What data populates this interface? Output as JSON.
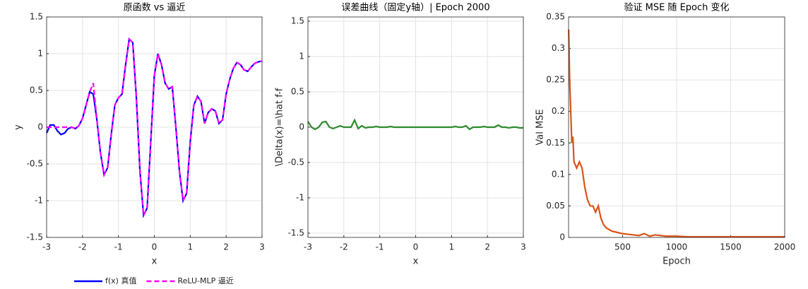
{
  "chart_data": [
    {
      "type": "line",
      "title": "原函数 vs 逼近",
      "xlabel": "x",
      "ylabel": "y",
      "x": [
        -3,
        -2.9,
        -2.8,
        -2.7,
        -2.6,
        -2.5,
        -2.4,
        -2.3,
        -2.2,
        -2.1,
        -2,
        -1.9,
        -1.8,
        -1.7,
        -1.6,
        -1.5,
        -1.4,
        -1.3,
        -1.2,
        -1.1,
        -1,
        -0.9,
        -0.8,
        -0.7,
        -0.6,
        -0.5,
        -0.4,
        -0.3,
        -0.2,
        -0.1,
        0,
        0.1,
        0.2,
        0.3,
        0.4,
        0.5,
        0.6,
        0.7,
        0.8,
        0.9,
        1,
        1.1,
        1.2,
        1.3,
        1.4,
        1.5,
        1.6,
        1.7,
        1.8,
        1.9,
        2,
        2.1,
        2.2,
        2.3,
        2.4,
        2.5,
        2.6,
        2.7,
        2.8,
        2.9,
        3
      ],
      "series": [
        {
          "name": "f(x) 真值",
          "color": "#0000ff",
          "linestyle": "solid",
          "values": [
            -0.08,
            0.03,
            0.03,
            -0.05,
            -0.1,
            -0.08,
            -0.02,
            0,
            -0.02,
            0.02,
            0.12,
            0.3,
            0.48,
            0.45,
            0.1,
            -0.35,
            -0.65,
            -0.55,
            -0.1,
            0.3,
            0.4,
            0.45,
            0.85,
            1.2,
            1.15,
            0.4,
            -0.6,
            -1.2,
            -1.1,
            -0.2,
            0.7,
            1,
            0.85,
            0.6,
            0.52,
            0.55,
            0,
            -0.6,
            -1,
            -0.9,
            -0.2,
            0.3,
            0.42,
            0.35,
            0.05,
            0.2,
            0.25,
            0.22,
            0.05,
            0.1,
            0.45,
            0.65,
            0.8,
            0.88,
            0.85,
            0.78,
            0.76,
            0.82,
            0.87,
            0.89,
            0.9
          ]
        },
        {
          "name": "ReLU-MLP 逼近",
          "color": "#ff00ff",
          "linestyle": "dashed",
          "values": [
            0,
            0,
            0,
            0,
            0,
            0,
            0,
            0,
            -0.02,
            0.02,
            0.12,
            0.3,
            0.48,
            0.6,
            0.1,
            -0.35,
            -0.65,
            -0.55,
            -0.1,
            0.3,
            0.4,
            0.45,
            0.85,
            1.2,
            1.15,
            0.4,
            -0.6,
            -1.2,
            -1.1,
            -0.2,
            0.7,
            1,
            0.85,
            0.6,
            0.52,
            0.55,
            0,
            -0.6,
            -1,
            -0.9,
            -0.2,
            0.3,
            0.42,
            0.35,
            0.05,
            0.2,
            0.25,
            0.22,
            0.05,
            0.1,
            0.45,
            0.65,
            0.8,
            0.88,
            0.85,
            0.78,
            0.76,
            0.82,
            0.87,
            0.89,
            0.9
          ]
        }
      ],
      "xlim": [
        -3,
        3
      ],
      "ylim": [
        -1.5,
        1.5
      ],
      "xticks": [
        -3,
        -2,
        -1,
        0,
        1,
        2,
        3
      ],
      "yticks": [
        -1.5,
        -1,
        -0.5,
        0,
        0.5,
        1,
        1.5
      ],
      "grid": true,
      "legend": "bottom"
    },
    {
      "type": "line",
      "title": "误差曲线（固定y轴）| Epoch 2000",
      "xlabel": "x",
      "ylabel": "\\Delta(x)=\\hat f-f",
      "x": [
        -3,
        -2.9,
        -2.8,
        -2.7,
        -2.6,
        -2.5,
        -2.4,
        -2.3,
        -2.2,
        -2.1,
        -2,
        -1.9,
        -1.8,
        -1.7,
        -1.6,
        -1.5,
        -1.4,
        -1.3,
        -1.2,
        -1.1,
        -1,
        -0.9,
        -0.8,
        -0.7,
        -0.6,
        -0.5,
        -0.4,
        -0.3,
        -0.2,
        -0.1,
        0,
        0.1,
        0.2,
        0.3,
        0.4,
        0.5,
        0.6,
        0.7,
        0.8,
        0.9,
        1,
        1.1,
        1.2,
        1.3,
        1.4,
        1.5,
        1.6,
        1.7,
        1.8,
        1.9,
        2,
        2.1,
        2.2,
        2.3,
        2.4,
        2.5,
        2.6,
        2.7,
        2.8,
        2.9,
        3
      ],
      "series": [
        {
          "name": "误差",
          "color": "#2e8b2e",
          "linestyle": "solid",
          "values": [
            0.08,
            0,
            -0.03,
            0,
            0.07,
            0.08,
            0,
            -0.02,
            0,
            0.02,
            0,
            0,
            0,
            0.1,
            -0.02,
            0.02,
            -0.01,
            0,
            0,
            0.01,
            0,
            0,
            0,
            0.01,
            0,
            0,
            0,
            0,
            0,
            0,
            0,
            0,
            0,
            0,
            0,
            0,
            0,
            0,
            0,
            0,
            0,
            0.01,
            0,
            0,
            0.02,
            -0.03,
            0,
            0,
            0,
            0.01,
            0,
            0,
            0,
            0.03,
            0,
            0,
            -0.01,
            0,
            0,
            -0.01,
            -0.01
          ]
        }
      ],
      "xlim": [
        -3,
        3
      ],
      "ylim": [
        -1.56,
        1.56
      ],
      "xticks": [
        -3,
        -2,
        -1,
        0,
        1,
        2,
        3
      ],
      "yticks": [
        -1.5,
        -1,
        -0.5,
        0,
        0.5,
        1,
        1.5
      ],
      "grid": true
    },
    {
      "type": "line",
      "title": "验证 MSE 随 Epoch 变化",
      "xlabel": "Epoch",
      "ylabel": "Val MSE",
      "x": [
        1,
        5,
        10,
        20,
        30,
        40,
        50,
        75,
        100,
        125,
        150,
        175,
        200,
        225,
        250,
        275,
        300,
        325,
        350,
        400,
        450,
        500,
        550,
        600,
        650,
        700,
        750,
        800,
        900,
        1000,
        1100,
        1200,
        1400,
        1600,
        1800,
        2000
      ],
      "series": [
        {
          "name": "Val MSE",
          "color": "#d95319",
          "linestyle": "solid",
          "values": [
            0.33,
            0.3,
            0.25,
            0.2,
            0.15,
            0.16,
            0.12,
            0.11,
            0.12,
            0.11,
            0.08,
            0.06,
            0.05,
            0.05,
            0.04,
            0.05,
            0.03,
            0.02,
            0.015,
            0.01,
            0.008,
            0.006,
            0.005,
            0.004,
            0.003,
            0.006,
            0.002,
            0.004,
            0.002,
            0.002,
            0.001,
            0.001,
            0.001,
            0.001,
            0.001,
            0.001
          ]
        }
      ],
      "xlim": [
        0,
        2000
      ],
      "ylim": [
        0,
        0.35
      ],
      "xticks": [
        500,
        1000,
        1500,
        2000
      ],
      "yticks": [
        0,
        0.05,
        0.1,
        0.15,
        0.2,
        0.25,
        0.3,
        0.35
      ],
      "grid": true
    }
  ]
}
